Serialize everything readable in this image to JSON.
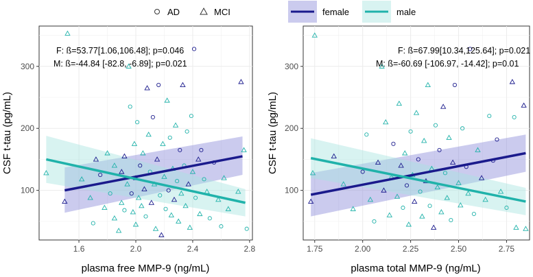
{
  "legend": {
    "shapes": [
      {
        "label": "AD",
        "shape": "circle"
      },
      {
        "label": "MCI",
        "shape": "triangle"
      }
    ],
    "groups": [
      {
        "label": "female",
        "color": "#1a1a8c",
        "fill": "#8c8cd9"
      },
      {
        "label": "male",
        "color": "#20b2aa",
        "fill": "#a8e4df"
      }
    ]
  },
  "chart_data": [
    {
      "type": "scatter",
      "xlabel": "plasma free MMP-9 (ng/mL)",
      "ylabel": "CSF t-tau (pg/mL)",
      "xlim": [
        1.32,
        2.82
      ],
      "ylim": [
        20,
        365
      ],
      "xticks": [
        1.6,
        2.0,
        2.4,
        2.8
      ],
      "xtick_labels": [
        "1.6",
        "2.0",
        "2.4",
        "2.8"
      ],
      "yticks": [
        100,
        200,
        300
      ],
      "ytick_labels": [
        "100",
        "200",
        "300"
      ],
      "annotations": [
        "F: ß=53.77[1.06,106.48]; p=0.046",
        "M: ß=-44.84 [-82.8, -6.89]; p=0.021"
      ],
      "fits": [
        {
          "group": "female",
          "x": [
            1.5,
            2.75
          ],
          "y": [
            100,
            155
          ],
          "ci_lower": [
            64,
            125
          ],
          "ci_upper": [
            137,
            187
          ]
        },
        {
          "group": "male",
          "x": [
            1.37,
            2.77
          ],
          "y": [
            150,
            80
          ],
          "ci_lower": [
            112,
            58
          ],
          "ci_upper": [
            188,
            102
          ]
        }
      ],
      "points": [
        {
          "x": 1.5,
          "y": 82,
          "g": "female",
          "s": "triangle"
        },
        {
          "x": 1.52,
          "y": 353,
          "g": "male",
          "s": "triangle"
        },
        {
          "x": 1.37,
          "y": 128,
          "g": "male",
          "s": "triangle"
        },
        {
          "x": 1.62,
          "y": 118,
          "g": "male",
          "s": "triangle"
        },
        {
          "x": 1.68,
          "y": 88,
          "g": "male",
          "s": "triangle"
        },
        {
          "x": 1.7,
          "y": 47,
          "g": "male",
          "s": "circle"
        },
        {
          "x": 1.72,
          "y": 150,
          "g": "female",
          "s": "triangle"
        },
        {
          "x": 1.75,
          "y": 125,
          "g": "female",
          "s": "circle"
        },
        {
          "x": 1.78,
          "y": 72,
          "g": "male",
          "s": "triangle"
        },
        {
          "x": 1.8,
          "y": 160,
          "g": "male",
          "s": "triangle"
        },
        {
          "x": 1.82,
          "y": 95,
          "g": "male",
          "s": "circle"
        },
        {
          "x": 1.85,
          "y": 55,
          "g": "male",
          "s": "triangle"
        },
        {
          "x": 1.85,
          "y": 140,
          "g": "male",
          "s": "triangle"
        },
        {
          "x": 1.88,
          "y": 35,
          "g": "male",
          "s": "triangle"
        },
        {
          "x": 1.9,
          "y": 130,
          "g": "female",
          "s": "triangle"
        },
        {
          "x": 1.9,
          "y": 80,
          "g": "male",
          "s": "triangle"
        },
        {
          "x": 1.92,
          "y": 68,
          "g": "male",
          "s": "circle"
        },
        {
          "x": 1.92,
          "y": 155,
          "g": "female",
          "s": "triangle"
        },
        {
          "x": 1.94,
          "y": 110,
          "g": "male",
          "s": "triangle"
        },
        {
          "x": 1.95,
          "y": 300,
          "g": "male",
          "s": "triangle"
        },
        {
          "x": 1.96,
          "y": 235,
          "g": "male",
          "s": "circle"
        },
        {
          "x": 1.97,
          "y": 95,
          "g": "female",
          "s": "circle"
        },
        {
          "x": 1.98,
          "y": 65,
          "g": "male",
          "s": "triangle"
        },
        {
          "x": 1.99,
          "y": 175,
          "g": "male",
          "s": "triangle"
        },
        {
          "x": 2.0,
          "y": 120,
          "g": "female",
          "s": "triangle"
        },
        {
          "x": 2.0,
          "y": 45,
          "g": "male",
          "s": "triangle"
        },
        {
          "x": 2.01,
          "y": 210,
          "g": "male",
          "s": "circle"
        },
        {
          "x": 2.02,
          "y": 88,
          "g": "male",
          "s": "triangle"
        },
        {
          "x": 2.03,
          "y": 140,
          "g": "female",
          "s": "circle"
        },
        {
          "x": 2.04,
          "y": 75,
          "g": "male",
          "s": "triangle"
        },
        {
          "x": 2.05,
          "y": 160,
          "g": "male",
          "s": "triangle"
        },
        {
          "x": 2.06,
          "y": 102,
          "g": "female",
          "s": "triangle"
        },
        {
          "x": 2.07,
          "y": 58,
          "g": "male",
          "s": "circle"
        },
        {
          "x": 2.08,
          "y": 265,
          "g": "female",
          "s": "triangle"
        },
        {
          "x": 2.09,
          "y": 190,
          "g": "male",
          "s": "triangle"
        },
        {
          "x": 2.1,
          "y": 130,
          "g": "male",
          "s": "circle"
        },
        {
          "x": 2.11,
          "y": 80,
          "g": "female",
          "s": "triangle"
        },
        {
          "x": 2.12,
          "y": 218,
          "g": "female",
          "s": "circle"
        },
        {
          "x": 2.13,
          "y": 110,
          "g": "male",
          "s": "triangle"
        },
        {
          "x": 2.14,
          "y": 38,
          "g": "male",
          "s": "triangle"
        },
        {
          "x": 2.15,
          "y": 150,
          "g": "female",
          "s": "triangle"
        },
        {
          "x": 2.16,
          "y": 270,
          "g": "female",
          "s": "circle"
        },
        {
          "x": 2.17,
          "y": 92,
          "g": "male",
          "s": "circle"
        },
        {
          "x": 2.18,
          "y": 28,
          "g": "female",
          "s": "triangle"
        },
        {
          "x": 2.19,
          "y": 175,
          "g": "male",
          "s": "triangle"
        },
        {
          "x": 2.2,
          "y": 122,
          "g": "male",
          "s": "triangle"
        },
        {
          "x": 2.21,
          "y": 70,
          "g": "male",
          "s": "circle"
        },
        {
          "x": 2.22,
          "y": 245,
          "g": "male",
          "s": "triangle"
        },
        {
          "x": 2.23,
          "y": 100,
          "g": "female",
          "s": "circle"
        },
        {
          "x": 2.24,
          "y": 185,
          "g": "male",
          "s": "circle"
        },
        {
          "x": 2.25,
          "y": 60,
          "g": "male",
          "s": "triangle"
        },
        {
          "x": 2.26,
          "y": 135,
          "g": "male",
          "s": "triangle"
        },
        {
          "x": 2.27,
          "y": 85,
          "g": "female",
          "s": "triangle"
        },
        {
          "x": 2.28,
          "y": 205,
          "g": "male",
          "s": "triangle"
        },
        {
          "x": 2.29,
          "y": 115,
          "g": "male",
          "s": "circle"
        },
        {
          "x": 2.3,
          "y": 50,
          "g": "male",
          "s": "triangle"
        },
        {
          "x": 2.31,
          "y": 165,
          "g": "female",
          "s": "circle"
        },
        {
          "x": 2.32,
          "y": 95,
          "g": "male",
          "s": "triangle"
        },
        {
          "x": 2.33,
          "y": 270,
          "g": "female",
          "s": "triangle"
        },
        {
          "x": 2.34,
          "y": 140,
          "g": "male",
          "s": "circle"
        },
        {
          "x": 2.35,
          "y": 75,
          "g": "male",
          "s": "triangle"
        },
        {
          "x": 2.36,
          "y": 195,
          "g": "male",
          "s": "circle"
        },
        {
          "x": 2.37,
          "y": 110,
          "g": "female",
          "s": "triangle"
        },
        {
          "x": 2.38,
          "y": 40,
          "g": "male",
          "s": "triangle"
        },
        {
          "x": 2.39,
          "y": 220,
          "g": "male",
          "s": "circle"
        },
        {
          "x": 2.4,
          "y": 130,
          "g": "male",
          "s": "triangle"
        },
        {
          "x": 2.41,
          "y": 328,
          "g": "female",
          "s": "circle"
        },
        {
          "x": 2.42,
          "y": 88,
          "g": "male",
          "s": "circle"
        },
        {
          "x": 2.44,
          "y": 150,
          "g": "female",
          "s": "triangle"
        },
        {
          "x": 2.45,
          "y": 62,
          "g": "male",
          "s": "triangle"
        },
        {
          "x": 2.46,
          "y": 165,
          "g": "female",
          "s": "circle"
        },
        {
          "x": 2.48,
          "y": 118,
          "g": "male",
          "s": "circle"
        },
        {
          "x": 2.5,
          "y": 98,
          "g": "male",
          "s": "triangle"
        },
        {
          "x": 2.52,
          "y": 55,
          "g": "male",
          "s": "circle"
        },
        {
          "x": 2.55,
          "y": 145,
          "g": "female",
          "s": "circle"
        },
        {
          "x": 2.58,
          "y": 85,
          "g": "male",
          "s": "triangle"
        },
        {
          "x": 2.6,
          "y": 42,
          "g": "male",
          "s": "circle"
        },
        {
          "x": 2.62,
          "y": 120,
          "g": "male",
          "s": "triangle"
        },
        {
          "x": 2.65,
          "y": 70,
          "g": "male",
          "s": "triangle"
        },
        {
          "x": 2.72,
          "y": 98,
          "g": "male",
          "s": "triangle"
        },
        {
          "x": 2.74,
          "y": 275,
          "g": "female",
          "s": "triangle"
        },
        {
          "x": 2.76,
          "y": 165,
          "g": "male",
          "s": "triangle"
        },
        {
          "x": 2.78,
          "y": 38,
          "g": "male",
          "s": "circle"
        }
      ]
    },
    {
      "type": "scatter",
      "xlabel": "plasma total MMP-9 (ng/mL)",
      "ylabel": "CSF t-tau (pg/mL)",
      "xlim": [
        1.69,
        2.87
      ],
      "ylim": [
        20,
        365
      ],
      "xticks": [
        1.75,
        2.0,
        2.25,
        2.5,
        2.75
      ],
      "xtick_labels": [
        "1.75",
        "2.00",
        "2.25",
        "2.50",
        "2.75"
      ],
      "yticks": [
        100,
        200,
        300
      ],
      "ytick_labels": [
        "100",
        "200",
        "300"
      ],
      "annotations": [
        "F: ß=67.99[10.34,125.64]; p=0.021",
        "M: ß=-60.69 [-106.97, -14.42]; p=0.01"
      ],
      "fits": [
        {
          "group": "female",
          "x": [
            1.73,
            2.85
          ],
          "y": [
            93,
            160
          ],
          "ci_lower": [
            58,
            130
          ],
          "ci_upper": [
            128,
            190
          ]
        },
        {
          "group": "male",
          "x": [
            1.73,
            2.85
          ],
          "y": [
            152,
            82
          ],
          "ci_lower": [
            120,
            60
          ],
          "ci_upper": [
            184,
            104
          ]
        }
      ],
      "points": [
        {
          "x": 1.73,
          "y": 82,
          "g": "female",
          "s": "triangle"
        },
        {
          "x": 1.75,
          "y": 350,
          "g": "male",
          "s": "triangle"
        },
        {
          "x": 1.74,
          "y": 128,
          "g": "male",
          "s": "triangle"
        },
        {
          "x": 1.85,
          "y": 155,
          "g": "female",
          "s": "triangle"
        },
        {
          "x": 1.9,
          "y": 110,
          "g": "male",
          "s": "triangle"
        },
        {
          "x": 1.95,
          "y": 70,
          "g": "male",
          "s": "triangle"
        },
        {
          "x": 2.0,
          "y": 130,
          "g": "female",
          "s": "circle"
        },
        {
          "x": 2.02,
          "y": 190,
          "g": "male",
          "s": "circle"
        },
        {
          "x": 2.04,
          "y": 85,
          "g": "male",
          "s": "triangle"
        },
        {
          "x": 2.06,
          "y": 50,
          "g": "male",
          "s": "circle"
        },
        {
          "x": 2.08,
          "y": 145,
          "g": "female",
          "s": "triangle"
        },
        {
          "x": 2.1,
          "y": 300,
          "g": "male",
          "s": "triangle"
        },
        {
          "x": 2.11,
          "y": 100,
          "g": "female",
          "s": "triangle"
        },
        {
          "x": 2.12,
          "y": 210,
          "g": "male",
          "s": "triangle"
        },
        {
          "x": 2.14,
          "y": 60,
          "g": "male",
          "s": "triangle"
        },
        {
          "x": 2.15,
          "y": 120,
          "g": "male",
          "s": "circle"
        },
        {
          "x": 2.16,
          "y": 175,
          "g": "female",
          "s": "circle"
        },
        {
          "x": 2.18,
          "y": 90,
          "g": "male",
          "s": "triangle"
        },
        {
          "x": 2.19,
          "y": 240,
          "g": "male",
          "s": "triangle"
        },
        {
          "x": 2.2,
          "y": 140,
          "g": "female",
          "s": "triangle"
        },
        {
          "x": 2.21,
          "y": 72,
          "g": "male",
          "s": "circle"
        },
        {
          "x": 2.22,
          "y": 160,
          "g": "male",
          "s": "triangle"
        },
        {
          "x": 2.23,
          "y": 108,
          "g": "female",
          "s": "circle"
        },
        {
          "x": 2.24,
          "y": 45,
          "g": "male",
          "s": "triangle"
        },
        {
          "x": 2.25,
          "y": 195,
          "g": "male",
          "s": "circle"
        },
        {
          "x": 2.26,
          "y": 125,
          "g": "male",
          "s": "triangle"
        },
        {
          "x": 2.27,
          "y": 82,
          "g": "female",
          "s": "triangle"
        },
        {
          "x": 2.28,
          "y": 225,
          "g": "male",
          "s": "triangle"
        },
        {
          "x": 2.29,
          "y": 150,
          "g": "female",
          "s": "circle"
        },
        {
          "x": 2.3,
          "y": 98,
          "g": "male",
          "s": "circle"
        },
        {
          "x": 2.31,
          "y": 58,
          "g": "male",
          "s": "triangle"
        },
        {
          "x": 2.32,
          "y": 180,
          "g": "male",
          "s": "triangle"
        },
        {
          "x": 2.33,
          "y": 115,
          "g": "female",
          "s": "triangle"
        },
        {
          "x": 2.34,
          "y": 270,
          "g": "male",
          "s": "triangle"
        },
        {
          "x": 2.35,
          "y": 75,
          "g": "male",
          "s": "circle"
        },
        {
          "x": 2.36,
          "y": 135,
          "g": "male",
          "s": "triangle"
        },
        {
          "x": 2.37,
          "y": 40,
          "g": "female",
          "s": "triangle"
        },
        {
          "x": 2.38,
          "y": 205,
          "g": "male",
          "s": "circle"
        },
        {
          "x": 2.39,
          "y": 105,
          "g": "male",
          "s": "triangle"
        },
        {
          "x": 2.4,
          "y": 165,
          "g": "female",
          "s": "circle"
        },
        {
          "x": 2.41,
          "y": 65,
          "g": "male",
          "s": "triangle"
        },
        {
          "x": 2.42,
          "y": 235,
          "g": "female",
          "s": "triangle"
        },
        {
          "x": 2.43,
          "y": 128,
          "g": "male",
          "s": "circle"
        },
        {
          "x": 2.44,
          "y": 88,
          "g": "male",
          "s": "triangle"
        },
        {
          "x": 2.45,
          "y": 185,
          "g": "male",
          "s": "triangle"
        },
        {
          "x": 2.46,
          "y": 52,
          "g": "male",
          "s": "circle"
        },
        {
          "x": 2.47,
          "y": 145,
          "g": "female",
          "s": "triangle"
        },
        {
          "x": 2.48,
          "y": 270,
          "g": "female",
          "s": "circle"
        },
        {
          "x": 2.5,
          "y": 112,
          "g": "male",
          "s": "triangle"
        },
        {
          "x": 2.51,
          "y": 76,
          "g": "male",
          "s": "triangle"
        },
        {
          "x": 2.52,
          "y": 200,
          "g": "male",
          "s": "circle"
        },
        {
          "x": 2.54,
          "y": 138,
          "g": "female",
          "s": "circle"
        },
        {
          "x": 2.55,
          "y": 95,
          "g": "male",
          "s": "triangle"
        },
        {
          "x": 2.56,
          "y": 328,
          "g": "female",
          "s": "circle"
        },
        {
          "x": 2.58,
          "y": 62,
          "g": "male",
          "s": "circle"
        },
        {
          "x": 2.6,
          "y": 165,
          "g": "male",
          "s": "triangle"
        },
        {
          "x": 2.62,
          "y": 120,
          "g": "female",
          "s": "triangle"
        },
        {
          "x": 2.64,
          "y": 85,
          "g": "male",
          "s": "triangle"
        },
        {
          "x": 2.66,
          "y": 220,
          "g": "male",
          "s": "circle"
        },
        {
          "x": 2.68,
          "y": 148,
          "g": "female",
          "s": "circle"
        },
        {
          "x": 2.7,
          "y": 182,
          "g": "female",
          "s": "circle"
        },
        {
          "x": 2.72,
          "y": 98,
          "g": "male",
          "s": "triangle"
        },
        {
          "x": 2.75,
          "y": 72,
          "g": "male",
          "s": "circle"
        },
        {
          "x": 2.78,
          "y": 275,
          "g": "female",
          "s": "triangle"
        },
        {
          "x": 2.79,
          "y": 218,
          "g": "male",
          "s": "circle"
        },
        {
          "x": 2.8,
          "y": 40,
          "g": "male",
          "s": "triangle"
        },
        {
          "x": 2.84,
          "y": 237,
          "g": "female",
          "s": "triangle"
        },
        {
          "x": 2.85,
          "y": 38,
          "g": "male",
          "s": "triangle"
        }
      ]
    }
  ]
}
